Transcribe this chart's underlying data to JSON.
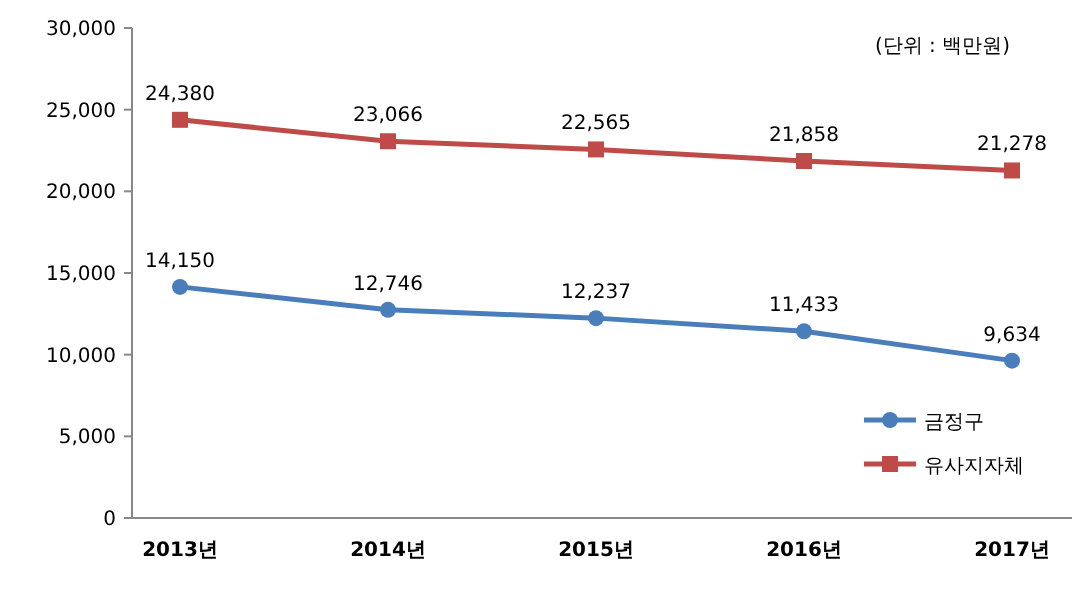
{
  "chart_data": {
    "type": "line",
    "categories": [
      "2013년",
      "2014년",
      "2015년",
      "2016년",
      "2017년"
    ],
    "series": [
      {
        "name": "금정구",
        "color": "#4a7ebb",
        "marker": "circle",
        "values": [
          14150,
          12746,
          12237,
          11433,
          9634
        ],
        "value_labels": [
          "14,150",
          "12,746",
          "12,237",
          "11,433",
          "9,634"
        ]
      },
      {
        "name": "유사지자체",
        "color": "#be4b48",
        "marker": "square",
        "values": [
          24380,
          23066,
          22565,
          21858,
          21278
        ],
        "value_labels": [
          "24,380",
          "23,066",
          "22,565",
          "21,858",
          "21,278"
        ]
      }
    ],
    "ylim": [
      0,
      30000
    ],
    "yticks": [
      {
        "value": 0,
        "label": "0"
      },
      {
        "value": 5000,
        "label": "5,000"
      },
      {
        "value": 10000,
        "label": "10,000"
      },
      {
        "value": 15000,
        "label": "15,000"
      },
      {
        "value": 20000,
        "label": "20,000"
      },
      {
        "value": 25000,
        "label": "25,000"
      },
      {
        "value": 30000,
        "label": "30,000"
      }
    ],
    "legend": "bottom right",
    "grid": false,
    "annotations": [
      "(단위 : 백만원)"
    ]
  }
}
